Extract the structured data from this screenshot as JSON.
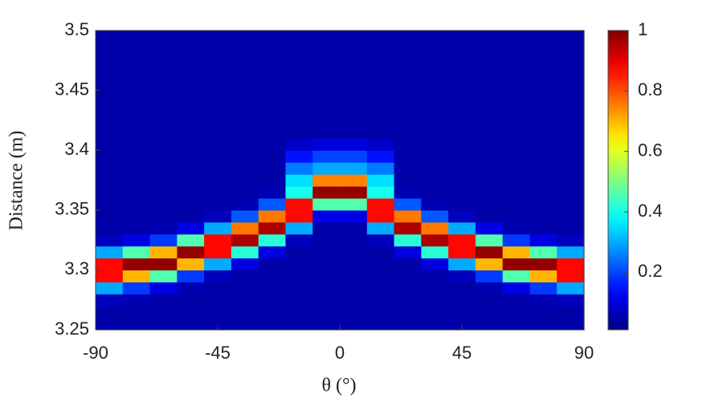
{
  "chart_data": {
    "type": "heatmap",
    "xlabel": "θ (°)",
    "ylabel": "Distance (m)",
    "xlim": [
      -90,
      90
    ],
    "ylim": [
      3.25,
      3.5
    ],
    "xticks": [
      -90,
      -45,
      0,
      45,
      90
    ],
    "yticks": [
      3.25,
      3.3,
      3.35,
      3.4,
      3.45,
      3.5
    ],
    "x": [
      -85,
      -75,
      -65,
      -55,
      -45,
      -35,
      -25,
      -15,
      -5,
      5,
      15,
      25,
      35,
      45,
      55,
      65,
      75,
      85
    ],
    "y": [
      3.255,
      3.265,
      3.275,
      3.285,
      3.295,
      3.305,
      3.315,
      3.325,
      3.335,
      3.345,
      3.355,
      3.365,
      3.375,
      3.385,
      3.395,
      3.405,
      3.415,
      3.425,
      3.435,
      3.445,
      3.455,
      3.465,
      3.475,
      3.485,
      3.495
    ],
    "z": [
      [
        0.05,
        0.05,
        0.05,
        0.05,
        0.05,
        0.05,
        0.05,
        0.05,
        0.05,
        0.05,
        0.05,
        0.05,
        0.05,
        0.05,
        0.05,
        0.05,
        0.05,
        0.05
      ],
      [
        0.05,
        0.05,
        0.05,
        0.05,
        0.05,
        0.05,
        0.05,
        0.05,
        0.05,
        0.05,
        0.05,
        0.05,
        0.05,
        0.05,
        0.05,
        0.05,
        0.05,
        0.05
      ],
      [
        0.07,
        0.06,
        0.05,
        0.05,
        0.05,
        0.05,
        0.05,
        0.05,
        0.05,
        0.05,
        0.05,
        0.05,
        0.05,
        0.05,
        0.05,
        0.05,
        0.06,
        0.07
      ],
      [
        0.3,
        0.19,
        0.11,
        0.06,
        0.05,
        0.05,
        0.05,
        0.05,
        0.05,
        0.05,
        0.05,
        0.05,
        0.05,
        0.05,
        0.06,
        0.11,
        0.19,
        0.3
      ],
      [
        0.87,
        0.7,
        0.46,
        0.19,
        0.07,
        0.05,
        0.05,
        0.05,
        0.05,
        0.05,
        0.05,
        0.05,
        0.05,
        0.07,
        0.19,
        0.46,
        0.7,
        0.87
      ],
      [
        0.87,
        0.98,
        0.98,
        0.7,
        0.3,
        0.1,
        0.05,
        0.05,
        0.05,
        0.05,
        0.05,
        0.05,
        0.1,
        0.3,
        0.7,
        0.98,
        0.98,
        0.87
      ],
      [
        0.3,
        0.46,
        0.7,
        0.98,
        0.87,
        0.42,
        0.1,
        0.05,
        0.05,
        0.05,
        0.05,
        0.1,
        0.42,
        0.87,
        0.98,
        0.7,
        0.46,
        0.3
      ],
      [
        0.07,
        0.11,
        0.19,
        0.46,
        0.87,
        0.96,
        0.42,
        0.07,
        0.05,
        0.05,
        0.07,
        0.42,
        0.96,
        0.87,
        0.46,
        0.19,
        0.11,
        0.07
      ],
      [
        0.05,
        0.05,
        0.06,
        0.11,
        0.3,
        0.76,
        0.96,
        0.3,
        0.05,
        0.05,
        0.3,
        0.96,
        0.76,
        0.3,
        0.11,
        0.06,
        0.05,
        0.05
      ],
      [
        0.05,
        0.05,
        0.05,
        0.05,
        0.07,
        0.22,
        0.76,
        0.87,
        0.11,
        0.11,
        0.87,
        0.76,
        0.22,
        0.07,
        0.05,
        0.05,
        0.05,
        0.05
      ],
      [
        0.05,
        0.05,
        0.05,
        0.05,
        0.05,
        0.06,
        0.22,
        0.87,
        0.46,
        0.46,
        0.87,
        0.22,
        0.06,
        0.05,
        0.05,
        0.05,
        0.05,
        0.05
      ],
      [
        0.05,
        0.05,
        0.05,
        0.05,
        0.05,
        0.05,
        0.06,
        0.4,
        0.98,
        0.98,
        0.4,
        0.06,
        0.05,
        0.05,
        0.05,
        0.05,
        0.05,
        0.05
      ],
      [
        0.05,
        0.05,
        0.05,
        0.05,
        0.05,
        0.05,
        0.05,
        0.35,
        0.75,
        0.75,
        0.35,
        0.05,
        0.05,
        0.05,
        0.05,
        0.05,
        0.05,
        0.05
      ],
      [
        0.05,
        0.05,
        0.05,
        0.05,
        0.05,
        0.05,
        0.05,
        0.25,
        0.3,
        0.3,
        0.25,
        0.05,
        0.05,
        0.05,
        0.05,
        0.05,
        0.05,
        0.05
      ],
      [
        0.05,
        0.05,
        0.05,
        0.05,
        0.05,
        0.05,
        0.05,
        0.15,
        0.2,
        0.2,
        0.15,
        0.05,
        0.05,
        0.05,
        0.05,
        0.05,
        0.05,
        0.05
      ],
      [
        0.05,
        0.05,
        0.05,
        0.05,
        0.05,
        0.05,
        0.05,
        0.08,
        0.1,
        0.1,
        0.08,
        0.05,
        0.05,
        0.05,
        0.05,
        0.05,
        0.05,
        0.05
      ],
      [
        0.05,
        0.05,
        0.05,
        0.05,
        0.05,
        0.05,
        0.05,
        0.05,
        0.05,
        0.05,
        0.05,
        0.05,
        0.05,
        0.05,
        0.05,
        0.05,
        0.05,
        0.05
      ],
      [
        0.05,
        0.05,
        0.05,
        0.05,
        0.05,
        0.05,
        0.05,
        0.05,
        0.05,
        0.05,
        0.05,
        0.05,
        0.05,
        0.05,
        0.05,
        0.05,
        0.05,
        0.05
      ],
      [
        0.05,
        0.05,
        0.05,
        0.05,
        0.05,
        0.05,
        0.05,
        0.05,
        0.05,
        0.05,
        0.05,
        0.05,
        0.05,
        0.05,
        0.05,
        0.05,
        0.05,
        0.05
      ],
      [
        0.05,
        0.05,
        0.05,
        0.05,
        0.05,
        0.05,
        0.05,
        0.05,
        0.05,
        0.05,
        0.05,
        0.05,
        0.05,
        0.05,
        0.05,
        0.05,
        0.05,
        0.05
      ],
      [
        0.05,
        0.05,
        0.05,
        0.05,
        0.05,
        0.05,
        0.05,
        0.05,
        0.05,
        0.05,
        0.05,
        0.05,
        0.05,
        0.05,
        0.05,
        0.05,
        0.05,
        0.05
      ],
      [
        0.05,
        0.05,
        0.05,
        0.05,
        0.05,
        0.05,
        0.05,
        0.05,
        0.05,
        0.05,
        0.05,
        0.05,
        0.05,
        0.05,
        0.05,
        0.05,
        0.05,
        0.05
      ],
      [
        0.05,
        0.05,
        0.05,
        0.05,
        0.05,
        0.05,
        0.05,
        0.05,
        0.05,
        0.05,
        0.05,
        0.05,
        0.05,
        0.05,
        0.05,
        0.05,
        0.05,
        0.05
      ],
      [
        0.05,
        0.05,
        0.05,
        0.05,
        0.05,
        0.05,
        0.05,
        0.05,
        0.05,
        0.05,
        0.05,
        0.05,
        0.05,
        0.05,
        0.05,
        0.05,
        0.05,
        0.05
      ],
      [
        0.05,
        0.05,
        0.05,
        0.05,
        0.05,
        0.05,
        0.05,
        0.05,
        0.05,
        0.05,
        0.05,
        0.05,
        0.05,
        0.05,
        0.05,
        0.05,
        0.05,
        0.05
      ]
    ],
    "colormap": "jet",
    "clim": [
      0.01,
      1
    ],
    "cticks": [
      0.2,
      0.4,
      0.6,
      0.8,
      1
    ]
  }
}
